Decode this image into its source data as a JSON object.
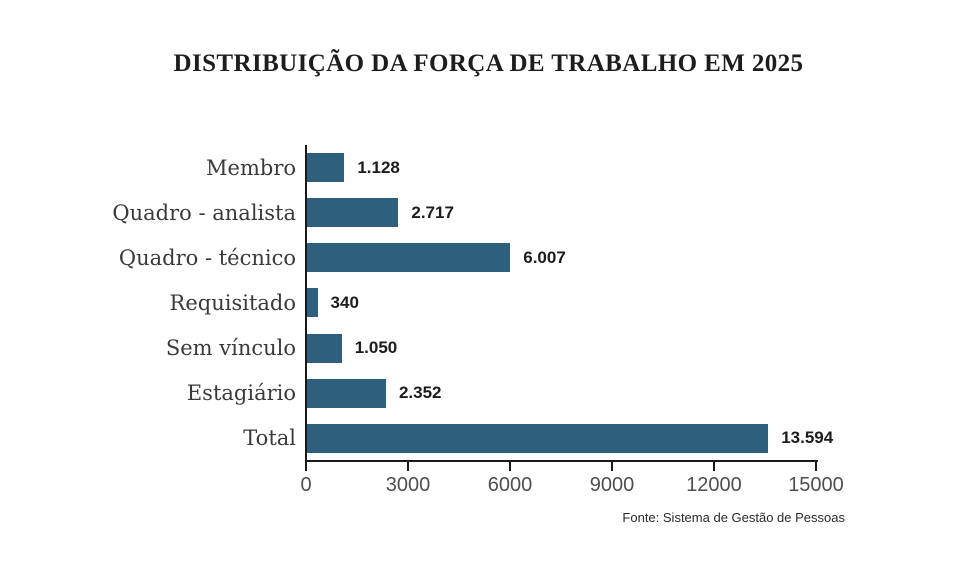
{
  "title": "DISTRIBUIÇÃO DA FORÇA DE TRABALHO EM 2025",
  "chart_data": {
    "type": "bar",
    "orientation": "horizontal",
    "title": "DISTRIBUIÇÃO DA FORÇA DE TRABALHO EM 2025",
    "categories": [
      "Membro",
      "Quadro - analista",
      "Quadro - técnico",
      "Requisitado",
      "Sem vínculo",
      "Estagiário",
      "Total"
    ],
    "values": [
      1128,
      2717,
      6007,
      340,
      1050,
      2352,
      13594
    ],
    "value_labels": [
      "1.128",
      "2.717",
      "6.007",
      "340",
      "1.050",
      "2.352",
      "13.594"
    ],
    "xlim": [
      0,
      15000
    ],
    "x_ticks": [
      0,
      3000,
      6000,
      9000,
      12000,
      15000
    ],
    "x_tick_labels": [
      "0",
      "3000",
      "6000",
      "9000",
      "12000",
      "15000"
    ],
    "bar_color": "#2E5F7D",
    "grid": false,
    "legend": false
  },
  "footer": {
    "source": "Fonte: Sistema de Gestão de Pessoas"
  }
}
